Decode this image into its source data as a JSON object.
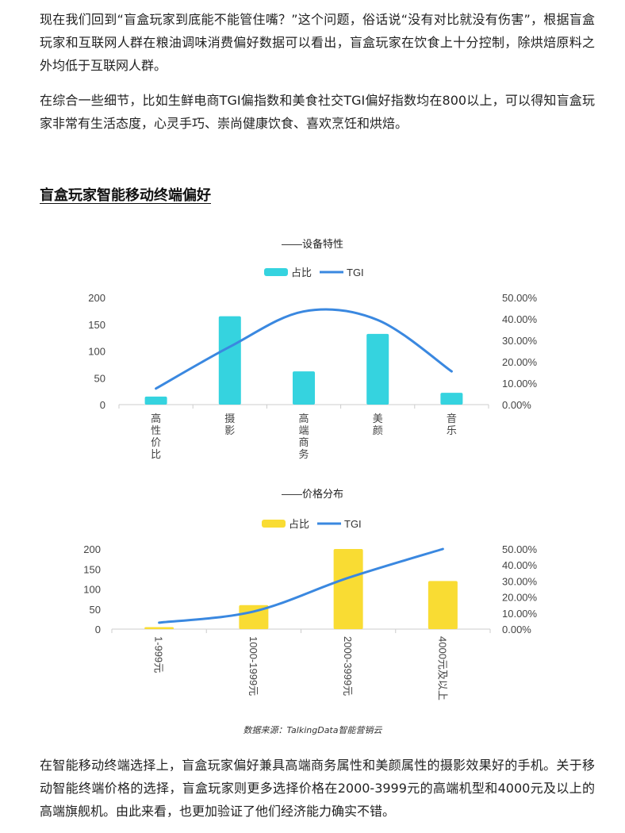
{
  "article": {
    "para1": "现在我们回到“盲盒玩家到底能不能管住嘴？”这个问题，俗话说“没有对比就没有伤害”，根据盲盒玩家和互联网人群在粮油调味消费偏好数据可以看出，盲盒玩家在饮食上十分控制，除烘焙原料之外均低于互联网人群。",
    "para2": "在综合一些细节，比如生鲜电商TGI偏指数和美食社交TGI偏好指数均在800以上，可以得知盲盒玩家非常有生活态度，心灵手巧、崇尚健康饮食、喜欢烹饪和烘焙。",
    "section_title": "盲盒玩家智能移动终端偏好",
    "source": "数据来源：TalkingData智能营销云",
    "para3": "在智能移动终端选择上，盲盒玩家偏好兼具高端商务属性和美颜属性的摄影效果好的手机。关于移动智能终端价格的选择，盲盒玩家则更多选择价格在2000-3999元的高端机型和4000元及以上的高端旗舰机。由此来看，也更加验证了他们经济能力确实不错。"
  },
  "colors": {
    "cyan": "#35d3df",
    "yellow": "#f9dc33",
    "line": "#3a88e0",
    "axis_text": "#444444",
    "grid": "#cccccc"
  },
  "chart_data": [
    {
      "type": "bar",
      "title": "——设备特性",
      "categories": [
        "高性价比",
        "摄影",
        "高端商务",
        "美颜",
        "音乐"
      ],
      "series": [
        {
          "name": "占比",
          "type": "bar",
          "axis": "left",
          "values": [
            15,
            165,
            62,
            132,
            22
          ]
        },
        {
          "name": "TGI",
          "type": "line",
          "axis": "right",
          "values": [
            0.075,
            0.27,
            0.435,
            0.395,
            0.155
          ]
        }
      ],
      "y_left": {
        "min": 0,
        "max": 200,
        "ticks": [
          "0",
          "50",
          "100",
          "150",
          "200"
        ]
      },
      "y_right": {
        "min": 0,
        "max": 0.5,
        "ticks": [
          "0.00%",
          "10.00%",
          "20.00%",
          "30.00%",
          "40.00%",
          "50.00%"
        ]
      },
      "legend": "top-center",
      "grid": false
    },
    {
      "type": "bar",
      "title": "——价格分布",
      "categories": [
        "1-999元",
        "1000-1999元",
        "2000-3999元",
        "4000元及以上"
      ],
      "series": [
        {
          "name": "占比",
          "type": "bar",
          "axis": "left",
          "values": [
            5,
            60,
            200,
            120
          ]
        },
        {
          "name": "TGI",
          "type": "line",
          "axis": "right",
          "values": [
            0.04,
            0.11,
            0.32,
            0.5
          ]
        }
      ],
      "y_left": {
        "min": 0,
        "max": 200,
        "ticks": [
          "0",
          "50",
          "100",
          "150",
          "200"
        ]
      },
      "y_right": {
        "min": 0,
        "max": 0.5,
        "ticks": [
          "0.00%",
          "10.00%",
          "20.00%",
          "30.00%",
          "40.00%",
          "50.00%"
        ]
      },
      "legend": "top-center",
      "grid": false
    }
  ]
}
